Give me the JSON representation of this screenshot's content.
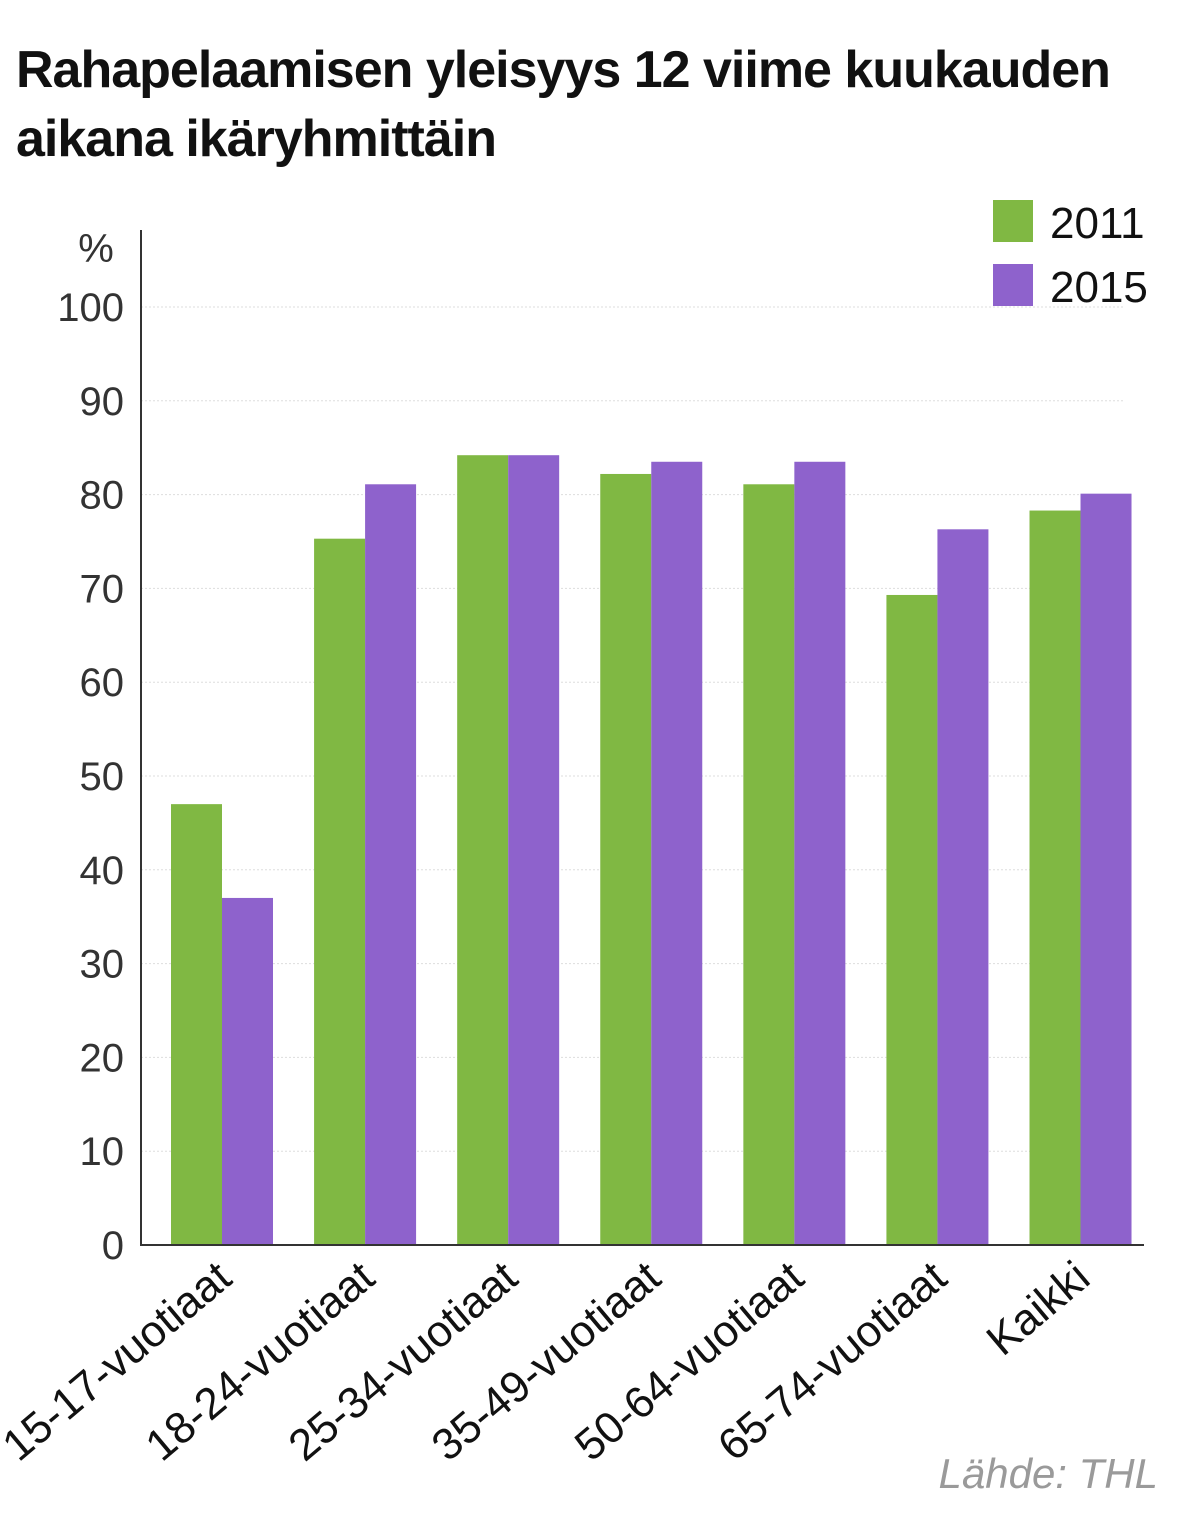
{
  "chart_data": {
    "type": "bar",
    "title": "Rahapelaamisen yleisyys 12 viime kuukauden aikana ikäryhmittäin",
    "ylabel": "%",
    "ylim": [
      0,
      100
    ],
    "yticks": [
      "0",
      "10",
      "20",
      "30",
      "40",
      "50",
      "60",
      "70",
      "80",
      "90",
      "100"
    ],
    "categories": [
      "15-17-vuotiaat",
      "18-24-vuotiaat",
      "25-34-vuotiaat",
      "35-49-vuotiaat",
      "50-64-vuotiaat",
      "65-74-vuotiaat",
      "Kaikki"
    ],
    "series": [
      {
        "name": "2011",
        "color": "#80b843",
        "values": [
          47,
          75.3,
          84.2,
          82.2,
          81.1,
          69.3,
          78.3
        ]
      },
      {
        "name": "2015",
        "color": "#8e62cc",
        "values": [
          37,
          81.1,
          84.2,
          83.5,
          83.5,
          76.3,
          80.1
        ]
      }
    ],
    "grid": true,
    "legend": "top-right",
    "source": "Lähde: THL"
  }
}
